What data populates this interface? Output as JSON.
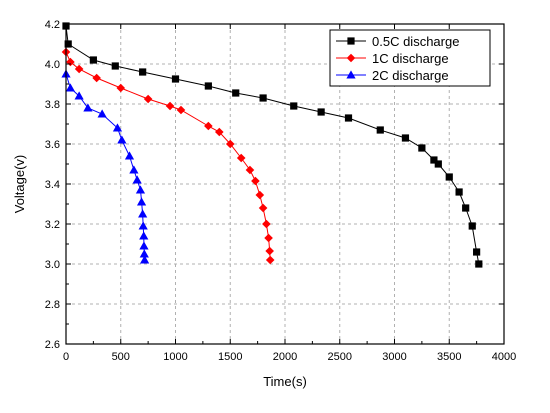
{
  "chart_data": {
    "type": "line",
    "title": "",
    "xlabel": "Time(s)",
    "ylabel": "Voltage(v)",
    "xlim": [
      0,
      4000
    ],
    "ylim": [
      2.6,
      4.2
    ],
    "x_ticks": [
      "0",
      "500",
      "1000",
      "1500",
      "2000",
      "2500",
      "3000",
      "3500",
      "4000"
    ],
    "y_ticks": [
      "2.6",
      "2.8",
      "3.0",
      "3.2",
      "3.4",
      "3.6",
      "3.8",
      "4.0",
      "4.2"
    ],
    "grid": true,
    "grid_style": "dashed",
    "legend_position": "top-right",
    "series": [
      {
        "name": "0.5C discharge",
        "color": "#000000",
        "marker": "square",
        "points": [
          [
            0,
            4.19
          ],
          [
            20,
            4.1
          ],
          [
            250,
            4.02
          ],
          [
            450,
            3.99
          ],
          [
            700,
            3.96
          ],
          [
            1000,
            3.925
          ],
          [
            1300,
            3.89
          ],
          [
            1550,
            3.855
          ],
          [
            1800,
            3.83
          ],
          [
            2080,
            3.79
          ],
          [
            2330,
            3.76
          ],
          [
            2580,
            3.73
          ],
          [
            2870,
            3.67
          ],
          [
            3100,
            3.63
          ],
          [
            3250,
            3.58
          ],
          [
            3360,
            3.52
          ],
          [
            3400,
            3.5
          ],
          [
            3500,
            3.435
          ],
          [
            3590,
            3.36
          ],
          [
            3650,
            3.28
          ],
          [
            3710,
            3.19
          ],
          [
            3750,
            3.06
          ],
          [
            3770,
            3.0
          ]
        ]
      },
      {
        "name": "1C discharge",
        "color": "#ff0000",
        "marker": "diamond",
        "points": [
          [
            0,
            4.06
          ],
          [
            40,
            4.01
          ],
          [
            120,
            3.975
          ],
          [
            280,
            3.93
          ],
          [
            500,
            3.88
          ],
          [
            750,
            3.825
          ],
          [
            950,
            3.79
          ],
          [
            1050,
            3.77
          ],
          [
            1300,
            3.69
          ],
          [
            1400,
            3.66
          ],
          [
            1500,
            3.6
          ],
          [
            1600,
            3.53
          ],
          [
            1680,
            3.47
          ],
          [
            1730,
            3.415
          ],
          [
            1770,
            3.345
          ],
          [
            1800,
            3.28
          ],
          [
            1830,
            3.2
          ],
          [
            1850,
            3.13
          ],
          [
            1860,
            3.065
          ],
          [
            1865,
            3.02
          ]
        ]
      },
      {
        "name": "2C discharge",
        "color": "#0000ff",
        "marker": "triangle",
        "points": [
          [
            0,
            3.95
          ],
          [
            40,
            3.88
          ],
          [
            120,
            3.84
          ],
          [
            200,
            3.78
          ],
          [
            330,
            3.75
          ],
          [
            470,
            3.68
          ],
          [
            510,
            3.62
          ],
          [
            580,
            3.54
          ],
          [
            620,
            3.47
          ],
          [
            650,
            3.42
          ],
          [
            680,
            3.37
          ],
          [
            690,
            3.31
          ],
          [
            700,
            3.25
          ],
          [
            705,
            3.19
          ],
          [
            710,
            3.14
          ],
          [
            712,
            3.09
          ],
          [
            715,
            3.05
          ],
          [
            718,
            3.02
          ]
        ]
      }
    ]
  }
}
